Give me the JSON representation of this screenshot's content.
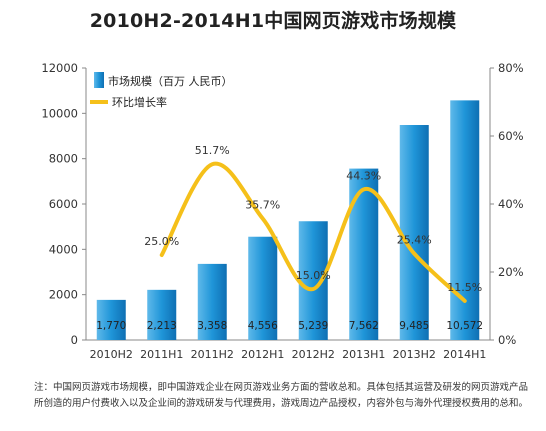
{
  "chart_data": {
    "type": "bar",
    "title": "2010H2-2014H1中国网页游戏市场规模",
    "categories": [
      "2010H2",
      "2011H1",
      "2011H2",
      "2012H1",
      "2012H2",
      "2013H1",
      "2013H2",
      "2014H1"
    ],
    "series": [
      {
        "name": "市场规模（百万 人民币）",
        "type": "bar",
        "axis": "left",
        "values": [
          1770,
          2213,
          3358,
          4556,
          5239,
          7562,
          9485,
          10572
        ],
        "labels": [
          "1,770",
          "2,213",
          "3,358",
          "4,556",
          "5,239",
          "7,562",
          "9,485",
          "10,572"
        ],
        "color": "#1b8fd2"
      },
      {
        "name": "环比增长率",
        "type": "line",
        "axis": "right",
        "values": [
          null,
          25.0,
          51.7,
          35.7,
          15.0,
          44.3,
          25.4,
          11.5
        ],
        "labels": [
          "",
          "25.0%",
          "51.7%",
          "35.7%",
          "15.0%",
          "44.3%",
          "25.4%",
          "11.5%"
        ],
        "color": "#f5c01a"
      }
    ],
    "ylim": [
      0,
      12000
    ],
    "yticks": [
      0,
      2000,
      4000,
      6000,
      8000,
      10000,
      12000
    ],
    "ytick_labels": [
      "0",
      "2000",
      "4000",
      "6000",
      "8000",
      "10000",
      "12000"
    ],
    "y2lim": [
      0,
      80
    ],
    "y2ticks": [
      0,
      20,
      40,
      60,
      80
    ],
    "y2tick_labels": [
      "0%",
      "20%",
      "40%",
      "60%",
      "80%"
    ],
    "legend_position": "top-left",
    "grid": false
  },
  "note": "注：中国网页游戏市场规模，即中国游戏企业在网页游戏业务方面的营收总和。具体包括其运营及研发的网页游戏产品所创造的用户付费收入以及企业间的游戏研发与代理费用，游戏周边产品授权，内容外包与海外代理授权费用的总和。"
}
